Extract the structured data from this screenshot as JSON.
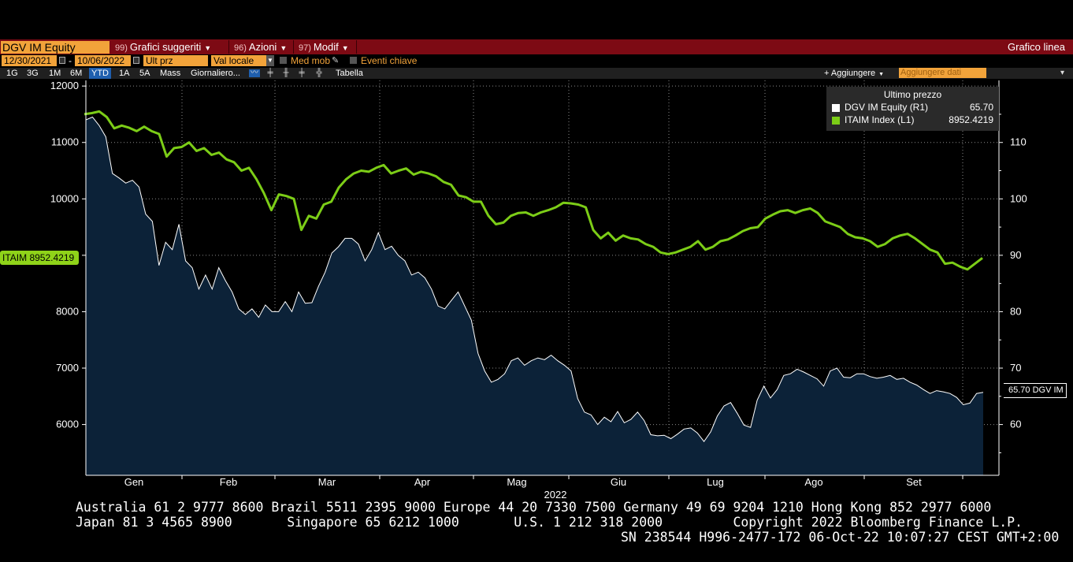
{
  "header": {
    "security": "DGV IM Equity",
    "menus": [
      {
        "num": "99)",
        "label": "Grafici suggeriti"
      },
      {
        "num": "96)",
        "label": "Azioni"
      },
      {
        "num": "97)",
        "label": "Modif"
      }
    ],
    "chart_type": "Grafico linea"
  },
  "daterow": {
    "start_date": "12/30/2021",
    "end_date": "10/06/2022",
    "dash": "-",
    "field1": "Ult prz",
    "field2": "Val locale",
    "opt1": "Med mob",
    "opt2": "Eventi chiave"
  },
  "toolbar": {
    "periods": [
      "1G",
      "3G",
      "1M",
      "6M",
      "YTD",
      "1A",
      "5A",
      "Mass"
    ],
    "active_period": "YTD",
    "frequency": "Giornaliero...",
    "table": "Tabella",
    "add_button": "+ Aggiungere",
    "add_placeholder": "Aggiungere dati"
  },
  "legend": {
    "title": "Ultimo prezzo",
    "rows": [
      {
        "name": "DGV IM Equity  (R1)",
        "value": "65.70",
        "color": "#ffffff"
      },
      {
        "name": "ITAIM Index  (L1)",
        "value": "8952.4219",
        "color": "#7ccd17"
      }
    ]
  },
  "tags": {
    "left": "ITAIM 8952.4219",
    "right": "65.70 DGV IM"
  },
  "footer": {
    "line1": "Australia 61 2 9777 8600 Brazil 5511 2395 9000 Europe 44 20 7330 7500 Germany 49 69 9204 1210 Hong Kong 852 2977 6000",
    "line2": "Japan 81 3 4565 8900       Singapore 65 6212 1000       U.S. 1 212 318 2000         Copyright 2022 Bloomberg Finance L.P.",
    "line3": "SN 238544 H996-2477-172 06-Oct-22 10:07:27 CEST GMT+2:00"
  },
  "colors": {
    "index_line": "#7ccd17",
    "equity_line": "#ffffff",
    "area_fill": "#0c2238",
    "menu_bar": "#7d0a14",
    "field": "#f2a33a"
  },
  "chart_data": {
    "type": "line",
    "x_labels": [
      "Gen",
      "Feb",
      "Mar",
      "Apr",
      "Mag",
      "Giu",
      "Lug",
      "Ago",
      "Set"
    ],
    "year_label": "2022",
    "left_axis": {
      "ticks": [
        6000,
        7000,
        8000,
        9000,
        10000,
        11000,
        12000
      ],
      "range": [
        5100,
        12100
      ]
    },
    "right_axis": {
      "ticks": [
        60,
        70,
        80,
        90,
        100,
        110
      ],
      "range": [
        51,
        121
      ]
    },
    "grid": true,
    "series": [
      {
        "name": "DGV IM Equity",
        "axis": "right",
        "style": "area",
        "last": 65.7,
        "values": [
          114.0,
          114.5,
          113.0,
          111.0,
          104.5,
          103.7,
          102.8,
          103.3,
          102.1,
          97.3,
          96.0,
          88.2,
          92.3,
          91.0,
          95.5,
          89.0,
          87.8,
          84.0,
          86.5,
          84.0,
          87.8,
          85.5,
          83.5,
          80.5,
          79.5,
          80.5,
          79.0,
          81.2,
          80.0,
          80.0,
          81.8,
          80.0,
          83.5,
          81.5,
          81.6,
          84.5,
          87.0,
          90.4,
          91.5,
          93.0,
          93.0,
          92.0,
          89.0,
          91.0,
          94.0,
          91.0,
          91.6,
          90.0,
          89.0,
          86.5,
          87.0,
          86.0,
          84.0,
          81.0,
          80.5,
          82.0,
          83.5,
          81.0,
          78.5,
          72.6,
          69.5,
          67.5,
          68.0,
          69.0,
          71.3,
          71.8,
          70.5,
          71.3,
          71.8,
          71.5,
          72.3,
          71.3,
          70.5,
          69.5,
          64.6,
          62.2,
          61.7,
          60.0,
          61.3,
          60.5,
          62.3,
          60.3,
          60.9,
          62.2,
          60.7,
          58.2,
          58.0,
          58.1,
          57.5,
          58.3,
          59.2,
          59.4,
          58.5,
          57.0,
          58.7,
          61.5,
          63.3,
          63.9,
          62.0,
          59.9,
          59.5,
          64.3,
          66.8,
          64.7,
          66.2,
          68.7,
          69.0,
          69.8,
          69.3,
          68.7,
          68.1,
          66.8,
          69.5,
          70.0,
          68.4,
          68.3,
          69.0,
          69.0,
          68.5,
          68.2,
          68.4,
          68.7,
          68.0,
          68.2,
          67.5,
          67.0,
          66.2,
          65.5,
          66.0,
          65.8,
          65.5,
          64.8,
          63.5,
          63.8,
          65.5,
          65.7
        ]
      },
      {
        "name": "ITAIM Index",
        "axis": "left",
        "style": "line",
        "last": 8952.4219,
        "values": [
          11500,
          11520,
          11550,
          11450,
          11250,
          11300,
          11260,
          11200,
          11280,
          11200,
          11150,
          10750,
          10900,
          10920,
          11000,
          10850,
          10900,
          10780,
          10820,
          10700,
          10650,
          10500,
          10550,
          10350,
          10100,
          9800,
          10080,
          10050,
          10000,
          9450,
          9700,
          9650,
          9900,
          9950,
          10200,
          10350,
          10450,
          10500,
          10480,
          10550,
          10600,
          10450,
          10500,
          10540,
          10430,
          10480,
          10450,
          10400,
          10300,
          10250,
          10060,
          10030,
          9950,
          9950,
          9700,
          9550,
          9580,
          9700,
          9750,
          9760,
          9700,
          9760,
          9800,
          9850,
          9930,
          9920,
          9900,
          9850,
          9450,
          9300,
          9400,
          9260,
          9350,
          9300,
          9280,
          9200,
          9150,
          9050,
          9020,
          9050,
          9100,
          9150,
          9250,
          9100,
          9150,
          9250,
          9280,
          9350,
          9430,
          9480,
          9500,
          9650,
          9720,
          9780,
          9800,
          9750,
          9800,
          9830,
          9750,
          9600,
          9550,
          9500,
          9380,
          9320,
          9300,
          9250,
          9150,
          9200,
          9300,
          9350,
          9380,
          9300,
          9200,
          9100,
          9050,
          8850,
          8870,
          8800,
          8750,
          8850,
          8952
        ]
      }
    ]
  }
}
